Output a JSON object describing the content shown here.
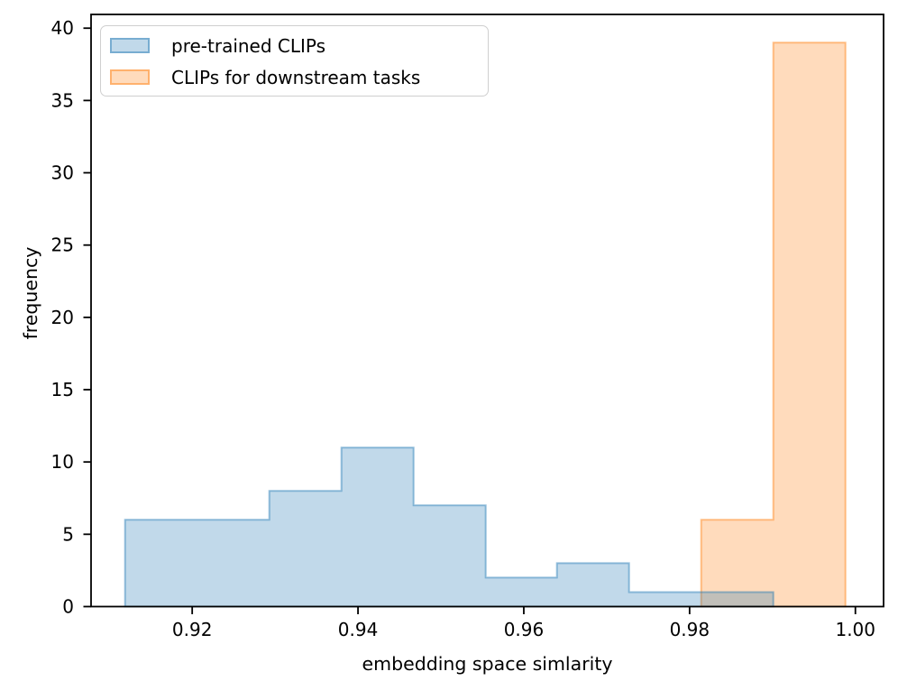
{
  "figure": {
    "background": "#ffffff"
  },
  "chart_data": {
    "type": "histogram",
    "title": "",
    "xlabel": "embedding space simlarity",
    "ylabel": "frequency",
    "bin_edges": [
      0.9119,
      0.9206,
      0.9293,
      0.938,
      0.9467,
      0.9554,
      0.964,
      0.9727,
      0.9814,
      0.9901,
      0.9988
    ],
    "series": [
      {
        "name": "pre-trained CLIPs",
        "color": "#1f77b4",
        "counts": [
          6,
          6,
          8,
          11,
          7,
          2,
          3,
          1,
          1,
          0
        ]
      },
      {
        "name": "CLIPs for downstream tasks",
        "color": "#ff7f0e",
        "counts": [
          0,
          0,
          0,
          0,
          0,
          0,
          0,
          0,
          6,
          39
        ]
      }
    ],
    "x_tick_labels": [
      "0.92",
      "0.94",
      "0.96",
      "0.98",
      "1.00"
    ],
    "x_tick_values": [
      0.92,
      0.94,
      0.96,
      0.98,
      1.0
    ],
    "y_tick_labels": [
      "0",
      "5",
      "10",
      "15",
      "20",
      "25",
      "30",
      "35",
      "40"
    ],
    "y_tick_values": [
      0,
      5,
      10,
      15,
      20,
      25,
      30,
      35,
      40
    ],
    "xlim": [
      0.9078,
      1.0034
    ],
    "ylim": [
      0,
      40.95
    ],
    "grid": false,
    "legend_position": "upper left",
    "fill_alpha": 0.28,
    "edge_alpha": 0.45,
    "axis_color": "#000000"
  }
}
